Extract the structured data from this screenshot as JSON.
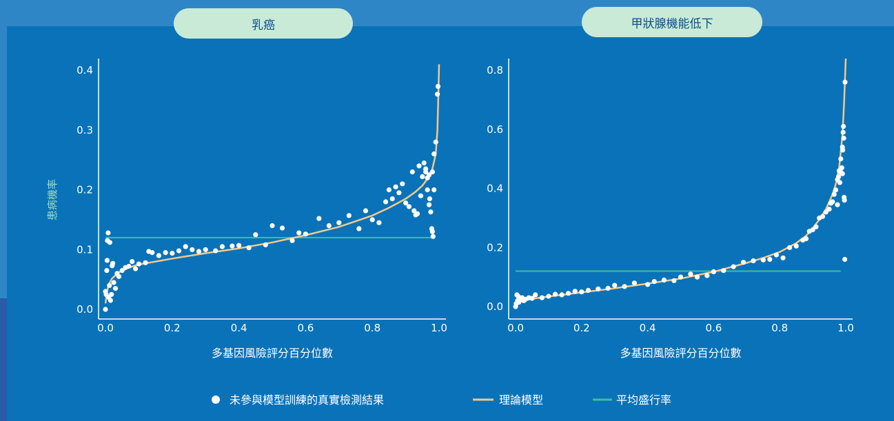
{
  "legend": {
    "points": "未參與模型訓練的真實檢測結果",
    "model": "理論模型",
    "prevalence": "平均盛行率"
  },
  "colors": {
    "points": "#ffffff",
    "model": "#f2c98c",
    "prevalence": "#3fbfa0",
    "title_bg": "#c9ead6"
  },
  "chart_data": [
    {
      "type": "scatter",
      "title": "乳癌",
      "xlabel": "多基因風險評分百分位數",
      "ylabel": "患病機率",
      "xlim": [
        0.0,
        1.0
      ],
      "ylim": [
        0.0,
        0.4
      ],
      "xticks": [
        "0.0",
        "0.2",
        "0.4",
        "0.6",
        "0.8",
        "1.0"
      ],
      "yticks": [
        "0.0",
        "0.1",
        "0.2",
        "0.3",
        "0.4"
      ],
      "prevalence": 0.12,
      "model_curve": [
        [
          0.0,
          0.01
        ],
        [
          0.005,
          0.03
        ],
        [
          0.01,
          0.042
        ],
        [
          0.02,
          0.052
        ],
        [
          0.04,
          0.062
        ],
        [
          0.07,
          0.07
        ],
        [
          0.1,
          0.075
        ],
        [
          0.15,
          0.08
        ],
        [
          0.2,
          0.085
        ],
        [
          0.3,
          0.094
        ],
        [
          0.4,
          0.102
        ],
        [
          0.5,
          0.112
        ],
        [
          0.6,
          0.124
        ],
        [
          0.7,
          0.138
        ],
        [
          0.8,
          0.157
        ],
        [
          0.85,
          0.17
        ],
        [
          0.9,
          0.185
        ],
        [
          0.93,
          0.197
        ],
        [
          0.95,
          0.207
        ],
        [
          0.97,
          0.222
        ],
        [
          0.98,
          0.235
        ],
        [
          0.99,
          0.26
        ],
        [
          0.995,
          0.3
        ],
        [
          0.998,
          0.36
        ],
        [
          1.0,
          0.41
        ]
      ],
      "points": [
        [
          0.0,
          0.0
        ],
        [
          0.0,
          0.03
        ],
        [
          0.002,
          0.025
        ],
        [
          0.004,
          0.065
        ],
        [
          0.005,
          0.082
        ],
        [
          0.006,
          0.115
        ],
        [
          0.008,
          0.128
        ],
        [
          0.01,
          0.02
        ],
        [
          0.012,
          0.04
        ],
        [
          0.013,
          0.112
        ],
        [
          0.015,
          0.015
        ],
        [
          0.018,
          0.025
        ],
        [
          0.02,
          0.073
        ],
        [
          0.022,
          0.077
        ],
        [
          0.025,
          0.045
        ],
        [
          0.03,
          0.035
        ],
        [
          0.035,
          0.06
        ],
        [
          0.04,
          0.055
        ],
        [
          0.05,
          0.065
        ],
        [
          0.06,
          0.07
        ],
        [
          0.07,
          0.072
        ],
        [
          0.08,
          0.08
        ],
        [
          0.09,
          0.068
        ],
        [
          0.1,
          0.076
        ],
        [
          0.12,
          0.078
        ],
        [
          0.13,
          0.097
        ],
        [
          0.14,
          0.095
        ],
        [
          0.16,
          0.09
        ],
        [
          0.18,
          0.095
        ],
        [
          0.2,
          0.094
        ],
        [
          0.22,
          0.098
        ],
        [
          0.24,
          0.105
        ],
        [
          0.26,
          0.1
        ],
        [
          0.28,
          0.097
        ],
        [
          0.3,
          0.1
        ],
        [
          0.33,
          0.098
        ],
        [
          0.35,
          0.105
        ],
        [
          0.38,
          0.106
        ],
        [
          0.4,
          0.107
        ],
        [
          0.43,
          0.103
        ],
        [
          0.45,
          0.125
        ],
        [
          0.48,
          0.108
        ],
        [
          0.5,
          0.14
        ],
        [
          0.53,
          0.136
        ],
        [
          0.56,
          0.115
        ],
        [
          0.58,
          0.128
        ],
        [
          0.6,
          0.126
        ],
        [
          0.64,
          0.152
        ],
        [
          0.67,
          0.14
        ],
        [
          0.7,
          0.145
        ],
        [
          0.73,
          0.157
        ],
        [
          0.76,
          0.135
        ],
        [
          0.78,
          0.165
        ],
        [
          0.8,
          0.15
        ],
        [
          0.82,
          0.145
        ],
        [
          0.84,
          0.18
        ],
        [
          0.85,
          0.2
        ],
        [
          0.86,
          0.185
        ],
        [
          0.87,
          0.205
        ],
        [
          0.88,
          0.195
        ],
        [
          0.89,
          0.21
        ],
        [
          0.9,
          0.178
        ],
        [
          0.91,
          0.172
        ],
        [
          0.92,
          0.23
        ],
        [
          0.925,
          0.165
        ],
        [
          0.93,
          0.158
        ],
        [
          0.935,
          0.16
        ],
        [
          0.94,
          0.24
        ],
        [
          0.945,
          0.19
        ],
        [
          0.95,
          0.222
        ],
        [
          0.955,
          0.245
        ],
        [
          0.96,
          0.23
        ],
        [
          0.965,
          0.2
        ],
        [
          0.97,
          0.175
        ],
        [
          0.972,
          0.185
        ],
        [
          0.975,
          0.163
        ],
        [
          0.978,
          0.135
        ],
        [
          0.98,
          0.13
        ],
        [
          0.982,
          0.122
        ],
        [
          0.985,
          0.26
        ],
        [
          0.99,
          0.28
        ],
        [
          0.995,
          0.36
        ],
        [
          0.997,
          0.373
        ],
        [
          0.96,
          0.235
        ],
        [
          0.97,
          0.225
        ],
        [
          0.98,
          0.23
        ],
        [
          0.98,
          0.23
        ],
        [
          0.985,
          0.2
        ],
        [
          0.965,
          0.22
        ]
      ]
    },
    {
      "type": "scatter",
      "title": "甲狀腺機能低下",
      "xlabel": "多基因風險評分百分位數",
      "ylabel": "",
      "xlim": [
        0.0,
        1.0
      ],
      "ylim": [
        0.0,
        0.8
      ],
      "xticks": [
        "0.0",
        "0.2",
        "0.4",
        "0.6",
        "0.8",
        "1.0"
      ],
      "yticks": [
        "0.0",
        "0.2",
        "0.4",
        "0.6",
        "0.8"
      ],
      "prevalence": 0.12,
      "model_curve": [
        [
          0.0,
          0.005
        ],
        [
          0.01,
          0.015
        ],
        [
          0.03,
          0.022
        ],
        [
          0.06,
          0.028
        ],
        [
          0.1,
          0.034
        ],
        [
          0.15,
          0.041
        ],
        [
          0.2,
          0.048
        ],
        [
          0.3,
          0.062
        ],
        [
          0.4,
          0.078
        ],
        [
          0.5,
          0.095
        ],
        [
          0.6,
          0.118
        ],
        [
          0.7,
          0.148
        ],
        [
          0.75,
          0.165
        ],
        [
          0.8,
          0.185
        ],
        [
          0.85,
          0.215
        ],
        [
          0.88,
          0.24
        ],
        [
          0.9,
          0.265
        ],
        [
          0.92,
          0.295
        ],
        [
          0.94,
          0.33
        ],
        [
          0.96,
          0.38
        ],
        [
          0.97,
          0.415
        ],
        [
          0.98,
          0.47
        ],
        [
          0.99,
          0.58
        ],
        [
          0.995,
          0.69
        ],
        [
          1.0,
          0.86
        ]
      ],
      "points": [
        [
          0.0,
          0.0
        ],
        [
          0.002,
          0.01
        ],
        [
          0.004,
          0.04
        ],
        [
          0.006,
          0.02
        ],
        [
          0.008,
          0.035
        ],
        [
          0.01,
          0.015
        ],
        [
          0.012,
          0.03
        ],
        [
          0.015,
          0.025
        ],
        [
          0.02,
          0.03
        ],
        [
          0.025,
          0.02
        ],
        [
          0.03,
          0.025
        ],
        [
          0.04,
          0.03
        ],
        [
          0.05,
          0.028
        ],
        [
          0.06,
          0.04
        ],
        [
          0.08,
          0.03
        ],
        [
          0.1,
          0.035
        ],
        [
          0.12,
          0.042
        ],
        [
          0.14,
          0.04
        ],
        [
          0.16,
          0.045
        ],
        [
          0.18,
          0.052
        ],
        [
          0.2,
          0.05
        ],
        [
          0.22,
          0.055
        ],
        [
          0.25,
          0.06
        ],
        [
          0.28,
          0.062
        ],
        [
          0.3,
          0.072
        ],
        [
          0.33,
          0.068
        ],
        [
          0.36,
          0.08
        ],
        [
          0.4,
          0.075
        ],
        [
          0.42,
          0.085
        ],
        [
          0.45,
          0.09
        ],
        [
          0.48,
          0.088
        ],
        [
          0.5,
          0.1
        ],
        [
          0.53,
          0.11
        ],
        [
          0.55,
          0.1
        ],
        [
          0.58,
          0.105
        ],
        [
          0.6,
          0.118
        ],
        [
          0.63,
          0.122
        ],
        [
          0.66,
          0.135
        ],
        [
          0.69,
          0.15
        ],
        [
          0.72,
          0.155
        ],
        [
          0.75,
          0.158
        ],
        [
          0.77,
          0.16
        ],
        [
          0.79,
          0.175
        ],
        [
          0.81,
          0.165
        ],
        [
          0.83,
          0.2
        ],
        [
          0.85,
          0.205
        ],
        [
          0.87,
          0.225
        ],
        [
          0.88,
          0.23
        ],
        [
          0.89,
          0.255
        ],
        [
          0.9,
          0.26
        ],
        [
          0.91,
          0.27
        ],
        [
          0.92,
          0.3
        ],
        [
          0.93,
          0.305
        ],
        [
          0.94,
          0.32
        ],
        [
          0.95,
          0.33
        ],
        [
          0.955,
          0.35
        ],
        [
          0.96,
          0.355
        ],
        [
          0.965,
          0.38
        ],
        [
          0.97,
          0.395
        ],
        [
          0.975,
          0.43
        ],
        [
          0.978,
          0.44
        ],
        [
          0.98,
          0.46
        ],
        [
          0.982,
          0.42
        ],
        [
          0.985,
          0.5
        ],
        [
          0.988,
          0.47
        ],
        [
          0.99,
          0.54
        ],
        [
          0.991,
          0.53
        ],
        [
          0.992,
          0.59
        ],
        [
          0.993,
          0.61
        ],
        [
          0.994,
          0.57
        ],
        [
          0.995,
          0.37
        ],
        [
          0.996,
          0.36
        ],
        [
          0.997,
          0.16
        ],
        [
          0.998,
          0.76
        ],
        [
          0.985,
          0.455
        ],
        [
          0.99,
          0.45
        ],
        [
          0.975,
          0.345
        ]
      ]
    }
  ]
}
